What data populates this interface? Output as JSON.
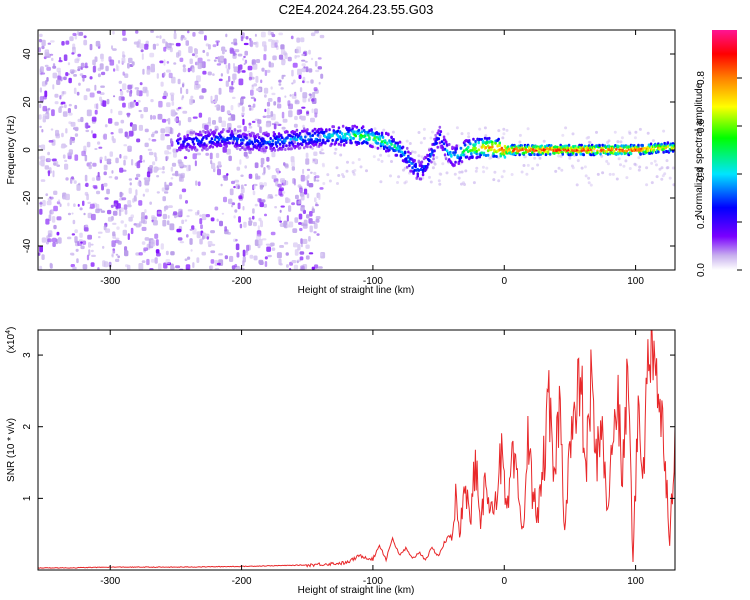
{
  "title": "C2E4.2024.264.23.55.G03",
  "chart_data": [
    {
      "type": "heatmap",
      "xlabel": "Height of straight line (km)",
      "ylabel": "Frequency (Hz)",
      "xlim": [
        -355,
        130
      ],
      "ylim": [
        -50,
        50
      ],
      "xticks": [
        -300,
        -200,
        -100,
        0,
        100
      ],
      "yticks": [
        -40,
        -20,
        0,
        20,
        40
      ],
      "colorbar": {
        "label": "Normalized spectral amplitude",
        "range": [
          0,
          1
        ],
        "ticks": [
          "0.0",
          "0.2",
          "0.4",
          "0.6",
          "0.8"
        ],
        "colors": [
          "#ffffff",
          "#b89ce8",
          "#7a00ff",
          "#0000ff",
          "#00e5ff",
          "#00ff00",
          "#ffff00",
          "#ff8000",
          "#ff0000",
          "#ff1493"
        ]
      },
      "noise_region": [
        -355,
        -140
      ],
      "center_track": {
        "x": [
          -250,
          -230,
          -210,
          -190,
          -170,
          -150,
          -130,
          -120,
          -110,
          -100,
          -90,
          -80,
          -75,
          -70,
          -65,
          -60,
          -55,
          -50,
          -45,
          -40,
          -30,
          -20,
          -10,
          0,
          10,
          20,
          40,
          60,
          80,
          100,
          120,
          130
        ],
        "freq": [
          3,
          4,
          5,
          3,
          4,
          5,
          6,
          6,
          6,
          5,
          3,
          0,
          -3,
          -7,
          -9,
          -6,
          0,
          6,
          0,
          -3,
          0,
          1,
          1,
          0,
          0,
          0,
          0,
          0,
          0,
          0,
          1,
          1
        ],
        "amplitude": [
          0.35,
          0.4,
          0.4,
          0.4,
          0.45,
          0.45,
          0.5,
          0.55,
          0.6,
          0.6,
          0.55,
          0.5,
          0.45,
          0.45,
          0.4,
          0.4,
          0.4,
          0.4,
          0.45,
          0.5,
          0.6,
          0.75,
          0.85,
          0.9,
          0.95,
          0.95,
          0.95,
          0.95,
          0.95,
          0.95,
          0.8,
          0.7
        ]
      }
    },
    {
      "type": "line",
      "xlabel": "Height of straight line (km)",
      "ylabel": "SNR (10 * v/v)",
      "multiplier": "(x10",
      "multiplier_exp": "4",
      "xlim": [
        -355,
        130
      ],
      "ylim": [
        0,
        3.35
      ],
      "xticks": [
        -300,
        -200,
        -100,
        0,
        100
      ],
      "yticks": [
        1,
        2,
        3
      ],
      "color": "#e8282a",
      "series": [
        {
          "x": [
            -355,
            -330,
            -300,
            -250,
            -200,
            -150,
            -120,
            -110,
            -100,
            -95,
            -90,
            -85,
            -80,
            -75,
            -70,
            -65,
            -60,
            -55,
            -50,
            -45,
            -40,
            -37,
            -34,
            -30,
            -26,
            -22,
            -18,
            -14,
            -10,
            -6,
            -2,
            2,
            6,
            10,
            14,
            18,
            22,
            26,
            30,
            34,
            38,
            42,
            46,
            50,
            54,
            58,
            62,
            66,
            70,
            74,
            78,
            82,
            86,
            90,
            94,
            98,
            102,
            106,
            110,
            114,
            118,
            122,
            126,
            130
          ],
          "y": [
            0.03,
            0.03,
            0.04,
            0.04,
            0.05,
            0.07,
            0.1,
            0.2,
            0.15,
            0.35,
            0.15,
            0.45,
            0.2,
            0.3,
            0.15,
            0.25,
            0.15,
            0.3,
            0.2,
            0.4,
            0.5,
            1.0,
            0.4,
            1.4,
            0.6,
            1.6,
            0.5,
            1.4,
            0.8,
            1.1,
            1.6,
            0.7,
            1.5,
            1.2,
            0.5,
            1.8,
            1.0,
            0.8,
            1.5,
            2.3,
            1.2,
            2.4,
            0.6,
            1.8,
            2.0,
            2.8,
            1.3,
            2.6,
            1.5,
            2.2,
            0.8,
            1.6,
            2.5,
            1.2,
            2.9,
            0.1,
            2.3,
            1.4,
            3.1,
            3.35,
            2.2,
            1.8,
            0.4,
            2.0
          ]
        }
      ]
    }
  ]
}
